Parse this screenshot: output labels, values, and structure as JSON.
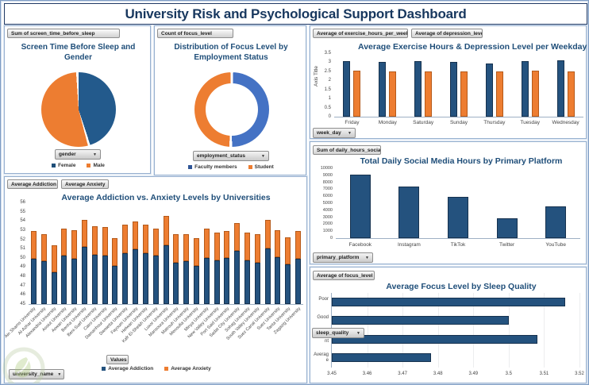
{
  "title": "University Risk and Psychological Support Dashboard",
  "watermark_icon": "leaf-shield-logo",
  "colors": {
    "title_navy": "#17375e",
    "chart_title_blue": "#1f4e79",
    "bar_blue": "#24527e",
    "bar_blue_border": "#16324f",
    "donut_blue": "#4472c4",
    "orange": "#ed7d31",
    "orange_border": "#b55a1a",
    "panel_border": "#98b1d0"
  },
  "chart_data": [
    {
      "id": "gender_pie",
      "type": "pie",
      "title": "Screen Time Before Sleep and Gender",
      "measure": "Sum of screen_time_before_sleep",
      "filter": "gender",
      "start_angle_deg": -2,
      "slices": [
        {
          "label": "Female",
          "pct": 46,
          "color": "#235a8c"
        },
        {
          "label": "Male",
          "pct": 54,
          "color": "#ed7d31"
        }
      ],
      "legend": [
        "Female",
        "Male"
      ],
      "legend_colors": [
        "#1f4e79",
        "#ed7d31"
      ]
    },
    {
      "id": "focus_donut",
      "type": "pie",
      "subtype": "donut",
      "title": "Distribution of Focus Level by Employment Status",
      "measure": "Count of focus_level",
      "filter": "employment_status",
      "start_angle_deg": 0,
      "slices": [
        {
          "label": "Faculty members",
          "pct": 50.5,
          "color": "#4472c4"
        },
        {
          "label": "Student",
          "pct": 49.5,
          "color": "#ed7d31"
        }
      ],
      "legend": [
        "Faculty members",
        "Student"
      ],
      "legend_colors": [
        "#2f5597",
        "#ed7d31"
      ]
    },
    {
      "id": "weekday",
      "type": "bar",
      "title": "Average Exercise Hours & Depression Level per Weekday",
      "measures": [
        "Average of exercise_hours_per_week",
        "Average of depression_level"
      ],
      "filter": "week_day",
      "ylabel": "Axis Title",
      "ylim": [
        0,
        3.5
      ],
      "ytick_step": 0.5,
      "grid": false,
      "categories": [
        "Friday",
        "Monday",
        "Saturday",
        "Sunday",
        "Thursday",
        "Tuesday",
        "Wednesday"
      ],
      "series": [
        {
          "name": "Average of exercise_hours_per_week",
          "color": "#24527e",
          "border": "#16324f",
          "values": [
            3.05,
            3.0,
            3.05,
            3.0,
            2.95,
            3.05,
            3.1
          ]
        },
        {
          "name": "Average of depression_level",
          "color": "#ed7d31",
          "border": "#b55a1a",
          "values": [
            2.55,
            2.5,
            2.5,
            2.5,
            2.5,
            2.55,
            2.5
          ]
        }
      ]
    },
    {
      "id": "social",
      "type": "bar",
      "title": "Total Daily Social Media Hours by Primary Platform",
      "measure": "Sum of daily_hours_social",
      "filter": "primary_platform",
      "ylim": [
        0,
        10000
      ],
      "ytick_step": 1000,
      "grid": false,
      "categories": [
        "Facebook",
        "Instagram",
        "TikTok",
        "Twitter",
        "YouTube"
      ],
      "values": [
        9100,
        7400,
        5900,
        2800,
        4600
      ],
      "color": "#24527e",
      "border": "#16324f"
    },
    {
      "id": "sleep",
      "type": "bar",
      "orientation": "horizontal",
      "title": "Average Focus Level by Sleep Quality",
      "measure": "Average of focus_level",
      "filter": "sleep_quality",
      "xlim": [
        3.45,
        3.52
      ],
      "xtick_step": 0.01,
      "grid": true,
      "categories": [
        "Poor",
        "Good",
        "Excellent",
        "Average"
      ],
      "values": [
        3.516,
        3.5,
        3.508,
        3.478
      ],
      "color": "#24527e",
      "border": "#16324f"
    },
    {
      "id": "universities",
      "type": "bar",
      "subtype": "stacked",
      "title": "Average Addiction vs. Anxiety Levels by Universities",
      "measures": [
        "Average Addiction",
        "Average Anxiety"
      ],
      "filter": "university_name",
      "legend_button": "Values",
      "legend": [
        "Average Addiction",
        "Average Anxiety"
      ],
      "ylim": [
        45,
        56
      ],
      "ytick_step": 1,
      "grid": false,
      "categories": [
        "Ain Shams University",
        "Al-Azhar University",
        "Alexandria University",
        "Assiut University",
        "Aswan University",
        "Benha University",
        "Beni-Suef University",
        "Cairo University",
        "Damanhour University",
        "Damietta University",
        "Fayoum University",
        "Helwan University",
        "Kafr El-Sheikh University",
        "Luxor University",
        "Mansoura University",
        "Matrouh University",
        "Menoufia University",
        "Minya University",
        "New Valley University",
        "Port Said University",
        "Sadat City University",
        "Sohag University",
        "South Valley University",
        "Suez Canal University",
        "Suez University",
        "Tanta University",
        "Zagazig University"
      ],
      "series": [
        {
          "name": "Average Addiction",
          "color": "#24527e",
          "border": "#16324f",
          "values": [
            49.9,
            49.6,
            48.4,
            50.2,
            49.9,
            51.2,
            50.3,
            50.2,
            49.1,
            50.5,
            50.9,
            50.5,
            50.2,
            51.4,
            49.5,
            49.6,
            49.1,
            50.0,
            49.7,
            50.0,
            50.8,
            49.7,
            49.5,
            51.0,
            50.1,
            49.3,
            49.9
          ]
        },
        {
          "name": "Average Anxiety",
          "color": "#ed7d31",
          "border": "#b55a1a",
          "values_top": [
            52.9,
            52.6,
            51.4,
            53.2,
            53.0,
            54.1,
            53.4,
            53.3,
            52.1,
            53.6,
            53.9,
            53.6,
            53.2,
            54.5,
            52.6,
            52.6,
            52.1,
            53.2,
            52.7,
            52.9,
            53.8,
            52.7,
            52.6,
            54.1,
            53.0,
            52.2,
            52.9
          ]
        }
      ]
    }
  ]
}
